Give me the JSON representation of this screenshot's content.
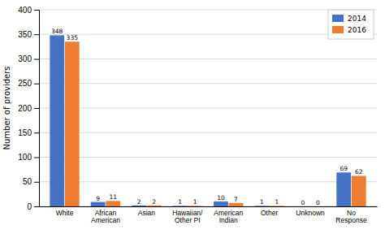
{
  "chart_data": {
    "type": "bar",
    "categories": [
      "White",
      "African\nAmerican",
      "Asian",
      "Hawaiian/\nOther PI",
      "American\nIndian",
      "Other",
      "Unknown",
      "No\nResponse"
    ],
    "series": [
      {
        "name": "2014",
        "color": "#4472c4",
        "values": [
          348,
          9,
          2,
          1,
          10,
          1,
          0,
          69
        ]
      },
      {
        "name": "2016",
        "color": "#ed7d31",
        "values": [
          335,
          11,
          2,
          1,
          7,
          1,
          0,
          62
        ]
      }
    ],
    "ylabel": "Number of providers",
    "ylim": [
      0,
      400
    ],
    "yticks": [
      0,
      50,
      100,
      150,
      200,
      250,
      300,
      350,
      400
    ],
    "grid": true,
    "legend": "upper right",
    "data_labels": true
  }
}
